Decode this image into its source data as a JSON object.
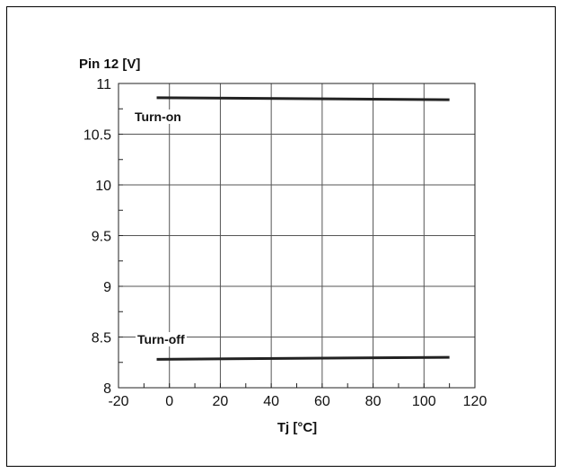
{
  "chart_data": {
    "type": "line",
    "title": "",
    "ylabel": "Pin 12 [V]",
    "xlabel": "Tj [°C]",
    "xlim": [
      -20,
      120
    ],
    "ylim": [
      8,
      11
    ],
    "x_ticks": [
      -20,
      0,
      20,
      40,
      60,
      80,
      100,
      120
    ],
    "y_ticks": [
      8,
      8.5,
      9,
      9.5,
      10,
      10.5,
      11
    ],
    "x_tick_labels": [
      "-20",
      "0",
      "20",
      "40",
      "60",
      "80",
      "100",
      "120"
    ],
    "y_tick_labels": [
      "8",
      "8.5",
      "9",
      "9.5",
      "10",
      "10.5",
      "11"
    ],
    "grid": true,
    "series": [
      {
        "name": "Turn-on",
        "x": [
          -5,
          110
        ],
        "y": [
          10.86,
          10.84
        ]
      },
      {
        "name": "Turn-off",
        "x": [
          -5,
          110
        ],
        "y": [
          8.28,
          8.3
        ]
      }
    ],
    "line_color": "#222222"
  }
}
